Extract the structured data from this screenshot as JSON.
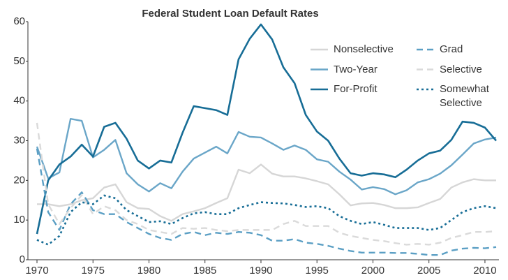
{
  "chart_data": {
    "type": "line",
    "title": "Federal Student Loan Default Rates",
    "x": [
      1970,
      1971,
      1972,
      1973,
      1974,
      1975,
      1976,
      1977,
      1978,
      1979,
      1980,
      1981,
      1982,
      1983,
      1984,
      1985,
      1986,
      1987,
      1988,
      1989,
      1990,
      1991,
      1992,
      1993,
      1994,
      1995,
      1996,
      1997,
      1998,
      1999,
      2000,
      2001,
      2002,
      2003,
      2004,
      2005,
      2006,
      2007,
      2008,
      2009,
      2010,
      2011
    ],
    "xlim": [
      1970,
      2011
    ],
    "xticks": [
      1970,
      1975,
      1980,
      1985,
      1990,
      1995,
      2000,
      2005,
      2010
    ],
    "ylim": [
      0,
      60
    ],
    "yticks": [
      0,
      10,
      20,
      30,
      40,
      50,
      60
    ],
    "grid": false,
    "legend": "upper right",
    "series": [
      {
        "name": "Nonselective",
        "color": "#d6d6d6",
        "dash": "solid",
        "values": [
          14,
          14,
          13.5,
          14,
          15,
          15.5,
          18.2,
          19,
          14.5,
          13,
          12.8,
          11,
          9.8,
          11.5,
          12.2,
          13,
          14.3,
          15.5,
          22.7,
          21.8,
          24,
          21.7,
          21,
          21,
          20.5,
          19.8,
          19,
          16.5,
          13.7,
          14.2,
          14.3,
          13.8,
          13,
          13,
          13.2,
          14.3,
          15.3,
          18.2,
          19.5,
          20.3,
          20,
          20
        ]
      },
      {
        "name": "Two-Year",
        "color": "#6aa6c8",
        "dash": "solid",
        "values": [
          28.5,
          20.5,
          22,
          35.5,
          35,
          25.8,
          27.7,
          30.2,
          21.8,
          19,
          17.2,
          19.3,
          18,
          22.2,
          25.5,
          27,
          28.5,
          26.8,
          32.2,
          31,
          30.8,
          29.3,
          27.7,
          28.8,
          27.7,
          25.3,
          24.7,
          22.2,
          20.2,
          17.7,
          18.3,
          17.8,
          16.5,
          17.5,
          19.5,
          20.3,
          21.7,
          23.8,
          26.5,
          29.3,
          30.3,
          30.8
        ]
      },
      {
        "name": "For-Profit",
        "color": "#176d96",
        "dash": "solid",
        "values": [
          6.5,
          20,
          24,
          26,
          29,
          26,
          33.5,
          34.5,
          30.5,
          25,
          23,
          25,
          24.5,
          32,
          38.7,
          38.2,
          37.7,
          36.5,
          50.5,
          55.7,
          59.3,
          55.5,
          48.5,
          44.5,
          36.5,
          32.3,
          30,
          25.5,
          21.8,
          21.2,
          21.8,
          21.5,
          20.8,
          22.7,
          25,
          26.8,
          27.5,
          30.2,
          34.8,
          34.5,
          33.3,
          30
        ]
      },
      {
        "name": "Grad",
        "color": "#5b9fc4",
        "dash": "dashed",
        "values": [
          28,
          12,
          7.5,
          14,
          17,
          12.5,
          11.5,
          11.5,
          9.5,
          8,
          6.5,
          5.5,
          5,
          6.5,
          7,
          6.2,
          6.8,
          6.5,
          7,
          6.8,
          6.2,
          4.8,
          4.8,
          5.2,
          4.3,
          4,
          3.5,
          2.8,
          2.2,
          1.8,
          1.8,
          1.8,
          1.7,
          1.7,
          1.5,
          1.2,
          1.2,
          2.3,
          2.8,
          3,
          2.9,
          3.2
        ]
      },
      {
        "name": "Selective",
        "color": "#dadada",
        "dash": "dashed",
        "values": [
          34.5,
          14,
          9,
          13,
          16.3,
          11.5,
          13.5,
          12.5,
          10,
          9,
          7.5,
          7,
          6.5,
          8,
          7.8,
          8,
          7.5,
          7.2,
          7.5,
          7.5,
          7.5,
          7.5,
          9,
          9.8,
          8.5,
          8.5,
          8.5,
          6.8,
          6,
          5.5,
          5,
          4.7,
          4.2,
          3.8,
          4,
          3.8,
          4.3,
          5.5,
          6.2,
          7,
          7,
          7.2
        ]
      },
      {
        "name": "Somewhat Selective",
        "color": "#176d96",
        "dash": "dotted",
        "values": [
          5,
          3.8,
          6,
          12,
          14.5,
          14,
          16.2,
          15.5,
          12.5,
          11,
          9.5,
          9.7,
          9,
          10.5,
          11.7,
          12,
          11.5,
          11.5,
          13,
          13.8,
          14.5,
          14.3,
          14.2,
          13.8,
          13.3,
          13.5,
          13,
          11,
          9.8,
          9,
          9.5,
          8.8,
          8,
          8,
          8,
          7.5,
          8,
          10,
          12,
          13,
          13.5,
          13
        ]
      }
    ]
  }
}
